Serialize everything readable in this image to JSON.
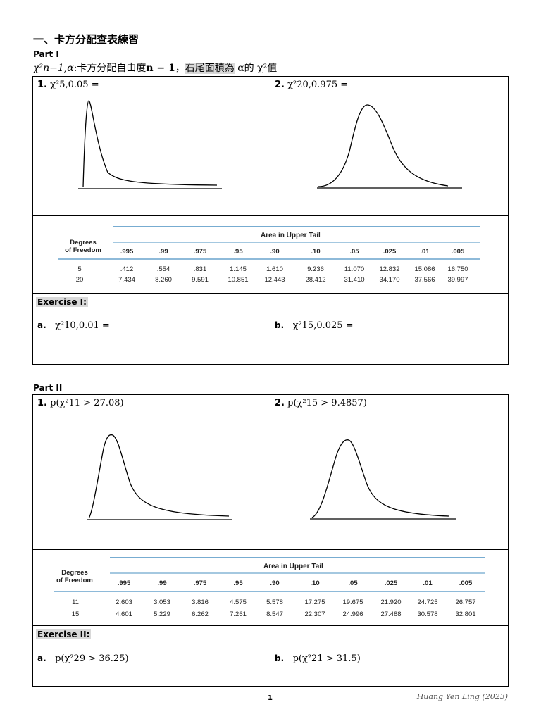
{
  "heading": "一、卡方分配查表練習",
  "part1": {
    "label": "Part I",
    "definition_symbol": "χ²n−1,α",
    "definition_text1": ":卡方分配自由度",
    "definition_n": "n − 1",
    "definition_sep": "，",
    "definition_highlight": "右尾面積為",
    "definition_alpha": " α的 ",
    "definition_chi": "χ²",
    "definition_end": "值",
    "q1_num": "1.",
    "q1_text": "χ²5,0.05 =",
    "q2_num": "2.",
    "q2_text": "χ²20,0.975 =",
    "table": {
      "col_header_left": "Degrees",
      "col_header_left2": "of Freedom",
      "area_header": "Area in Upper Tail",
      "columns": [
        ".995",
        ".99",
        ".975",
        ".95",
        ".90",
        ".10",
        ".05",
        ".025",
        ".01",
        ".005"
      ],
      "rows": [
        {
          "df": "5",
          "values": [
            ".412",
            ".554",
            ".831",
            "1.145",
            "1.610",
            "9.236",
            "11.070",
            "12.832",
            "15.086",
            "16.750"
          ]
        },
        {
          "df": "20",
          "values": [
            "7.434",
            "8.260",
            "9.591",
            "10.851",
            "12.443",
            "28.412",
            "31.410",
            "34.170",
            "37.566",
            "39.997"
          ]
        }
      ]
    },
    "exercise_title": "Exercise I:",
    "ex_a_label": "a.",
    "ex_a_text": "χ²10,0.01 =",
    "ex_b_label": "b.",
    "ex_b_text": "χ²15,0.025 ="
  },
  "part2": {
    "label": "Part II",
    "q1_num": "1.",
    "q1_text": "p(χ²11 > 27.08)",
    "q2_num": "2.",
    "q2_text": "p(χ²15 > 9.4857)",
    "table": {
      "col_header_left": "Degrees",
      "col_header_left2": "of Freedom",
      "area_header": "Area in Upper Tail",
      "columns": [
        ".995",
        ".99",
        ".975",
        ".95",
        ".90",
        ".10",
        ".05",
        ".025",
        ".01",
        ".005"
      ],
      "rows": [
        {
          "df": "11",
          "values": [
            "2.603",
            "3.053",
            "3.816",
            "4.575",
            "5.578",
            "17.275",
            "19.675",
            "21.920",
            "24.725",
            "26.757"
          ]
        },
        {
          "df": "15",
          "values": [
            "4.601",
            "5.229",
            "6.262",
            "7.261",
            "8.547",
            "22.307",
            "24.996",
            "27.488",
            "30.578",
            "32.801"
          ]
        }
      ]
    },
    "exercise_title": "Exercise II:",
    "ex_a_label": "a.",
    "ex_a_text": "p(χ²29 > 36.25)",
    "ex_b_label": "b.",
    "ex_b_text": "p(χ²21 > 31.5)"
  },
  "footer": {
    "page": "1",
    "author": "Huang Yen Ling (2023)"
  }
}
